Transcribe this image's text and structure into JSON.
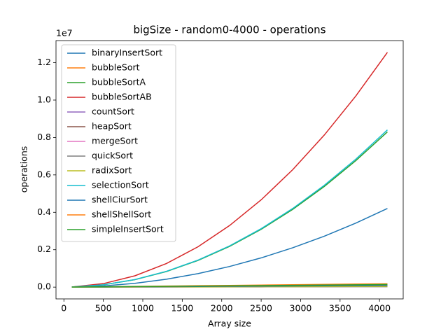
{
  "chart_data": {
    "type": "line",
    "title": "bigSize - random0-4000 - operations",
    "x_label": "Array size",
    "y_label": "operations",
    "y_offset_label": "1e7",
    "x": [
      100,
      500,
      900,
      1300,
      1700,
      2100,
      2500,
      2900,
      3300,
      3700,
      4100
    ],
    "xlim": [
      -100,
      4300
    ],
    "xticks": [
      0,
      500,
      1000,
      1500,
      2000,
      2500,
      3000,
      3500,
      4000
    ],
    "ylim": [
      -0.063,
      1.318
    ],
    "yticks": [
      {
        "value": 0,
        "label": "0.0"
      },
      0.2,
      0.4,
      0.6,
      0.8,
      {
        "value": 1,
        "label": "1.0"
      },
      1.2
    ],
    "legend": "upper left",
    "series": [
      {
        "name": "binaryInsertSort",
        "color": "#1f77b4",
        "values": [
          0.0003,
          0.0063,
          0.0203,
          0.0423,
          0.0723,
          0.1103,
          0.1563,
          0.2103,
          0.2723,
          0.3423,
          0.4203
        ]
      },
      {
        "name": "bubbleSort",
        "color": "#ff7f0e",
        "values": [
          0.0004,
          0.0022,
          0.004,
          0.0057,
          0.0075,
          0.0092,
          0.011,
          0.0128,
          0.0145,
          0.0163,
          0.018
        ]
      },
      {
        "name": "bubbleSortA",
        "color": "#2ca02c",
        "values": [
          0.0005,
          0.0124,
          0.04,
          0.0835,
          0.1428,
          0.2179,
          0.3088,
          0.4155,
          0.538,
          0.6763,
          0.83
        ]
      },
      {
        "name": "bubbleSortAB",
        "color": "#d62728",
        "values": [
          0.0007,
          0.0187,
          0.0605,
          0.1262,
          0.2158,
          0.3293,
          0.4666,
          0.6279,
          0.813,
          1.0221,
          1.255
        ]
      },
      {
        "name": "countSort",
        "color": "#9467bd",
        "values": [
          0.0001,
          0.0003,
          0.0005,
          0.0007,
          0.0009,
          0.0011,
          0.0013,
          0.0015,
          0.0017,
          0.0019,
          0.0021
        ]
      },
      {
        "name": "heapSort",
        "color": "#8c564b",
        "values": [
          0.0002,
          0.0012,
          0.0024,
          0.0036,
          0.0049,
          0.0062,
          0.0075,
          0.0088,
          0.0101,
          0.0115,
          0.0129
        ]
      },
      {
        "name": "mergeSort",
        "color": "#e377c2",
        "values": [
          0.0001,
          0.0009,
          0.0018,
          0.0027,
          0.0037,
          0.0046,
          0.0056,
          0.0066,
          0.0076,
          0.0086,
          0.0096
        ]
      },
      {
        "name": "quickSort",
        "color": "#7f7f7f",
        "values": [
          0.0001,
          0.0007,
          0.0014,
          0.0021,
          0.0028,
          0.0035,
          0.0043,
          0.005,
          0.0058,
          0.0066,
          0.0073
        ]
      },
      {
        "name": "radixSort",
        "color": "#bcbd22",
        "values": [
          0.0001,
          0.0004,
          0.0007,
          0.001,
          0.0013,
          0.0016,
          0.0019,
          0.0022,
          0.0025,
          0.0028,
          0.0031
        ]
      },
      {
        "name": "selectionSort",
        "color": "#17becf",
        "values": [
          0.0005,
          0.0125,
          0.0405,
          0.0845,
          0.1445,
          0.2205,
          0.3125,
          0.4205,
          0.5445,
          0.6845,
          0.8405
        ]
      },
      {
        "name": "shellCiurSort",
        "color": "#1f77b4",
        "values": [
          0.0001,
          0.0008,
          0.0016,
          0.0025,
          0.0034,
          0.0043,
          0.0052,
          0.0061,
          0.007,
          0.0079,
          0.0088
        ]
      },
      {
        "name": "shellShellSort",
        "color": "#ff7f0e",
        "values": [
          0.0002,
          0.0013,
          0.0025,
          0.0038,
          0.0051,
          0.0065,
          0.0079,
          0.0093,
          0.0107,
          0.0121,
          0.0136
        ]
      },
      {
        "name": "simpleInsertSort",
        "color": "#2ca02c",
        "values": [
          0.0003,
          0.0015,
          0.0028,
          0.0041,
          0.0055,
          0.0069,
          0.0083,
          0.0097,
          0.0111,
          0.0125,
          0.014
        ]
      }
    ]
  }
}
